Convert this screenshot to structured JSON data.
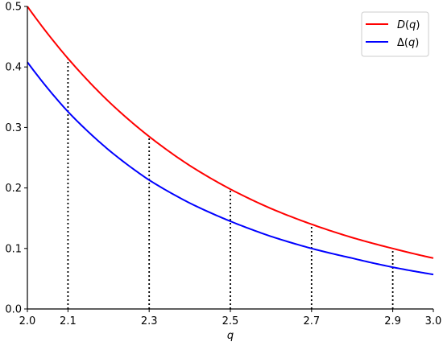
{
  "chart_data": {
    "type": "line",
    "xlabel": "q",
    "ylabel": "",
    "xlim": [
      2.0,
      3.0
    ],
    "ylim": [
      0.0,
      0.5
    ],
    "x_ticks": [
      2.0,
      2.1,
      2.3,
      2.5,
      2.7,
      2.9,
      3.0
    ],
    "x_tick_labels": [
      "2.0",
      "2.1",
      "2.3",
      "2.5",
      "2.7",
      "2.9",
      "3.0"
    ],
    "y_ticks": [
      0.0,
      0.1,
      0.2,
      0.3,
      0.4,
      0.5
    ],
    "y_tick_labels": [
      "0.0",
      "0.1",
      "0.2",
      "0.3",
      "0.4",
      "0.5"
    ],
    "grid": false,
    "legend_position": "top-right",
    "x": [
      2.0,
      2.1,
      2.2,
      2.3,
      2.4,
      2.5,
      2.6,
      2.7,
      2.8,
      2.9,
      3.0
    ],
    "series": [
      {
        "name": "D(q)",
        "color": "#ff0000",
        "values": [
          0.5,
          0.414,
          0.343,
          0.285,
          0.237,
          0.198,
          0.166,
          0.14,
          0.118,
          0.1,
          0.084
        ]
      },
      {
        "name": "Δ(q)",
        "color": "#0000ff",
        "values": [
          0.408,
          0.326,
          0.263,
          0.213,
          0.175,
          0.145,
          0.12,
          0.1,
          0.084,
          0.069,
          0.057
        ]
      }
    ],
    "vertical_dotted_lines": {
      "x": [
        2.1,
        2.3,
        2.5,
        2.7,
        2.9
      ],
      "follows_series": "D(q)"
    }
  }
}
